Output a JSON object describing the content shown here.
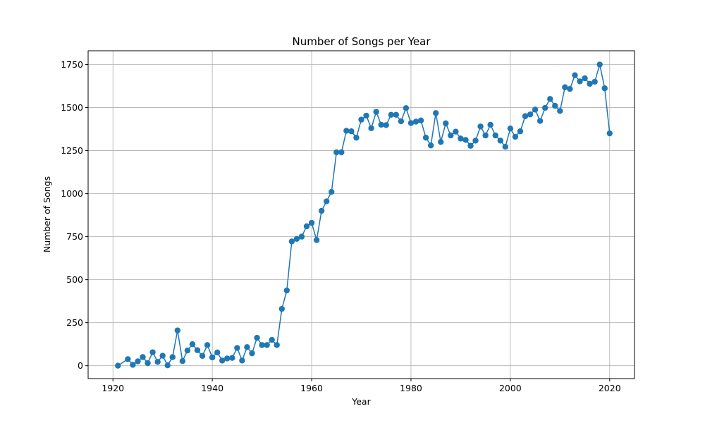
{
  "chart_data": {
    "type": "line",
    "title": "Number of Songs per Year",
    "xlabel": "Year",
    "ylabel": "Number of Songs",
    "xlim": [
      1915,
      2025
    ],
    "ylim": [
      -75,
      1830
    ],
    "xticks": [
      1920,
      1940,
      1960,
      1980,
      2000,
      2020
    ],
    "yticks": [
      0,
      250,
      500,
      750,
      1000,
      1250,
      1500,
      1750
    ],
    "grid": true,
    "marker": "circle",
    "colors": {
      "series": "#1f77b4",
      "grid": "#b0b0b0",
      "axis": "#000000"
    },
    "series": [
      {
        "x": [
          1921,
          1923,
          1924,
          1925,
          1926,
          1927,
          1928,
          1929,
          1930,
          1931,
          1932,
          1933,
          1934,
          1935,
          1936,
          1937,
          1938,
          1939,
          1940,
          1941,
          1942,
          1943,
          1944,
          1945,
          1946,
          1947,
          1948,
          1949,
          1950,
          1951,
          1952,
          1953,
          1954,
          1955,
          1956,
          1957,
          1958,
          1959,
          1960,
          1961,
          1962,
          1963,
          1964,
          1965,
          1966,
          1967,
          1968,
          1969,
          1970,
          1971,
          1972,
          1973,
          1974,
          1975,
          1976,
          1977,
          1978,
          1979,
          1980,
          1981,
          1982,
          1983,
          1984,
          1985,
          1986,
          1987,
          1988,
          1989,
          1990,
          1991,
          1992,
          1993,
          1994,
          1995,
          1996,
          1997,
          1998,
          1999,
          2000,
          2001,
          2002,
          2003,
          2004,
          2005,
          2006,
          2007,
          2008,
          2009,
          2010,
          2011,
          2012,
          2013,
          2014,
          2015,
          2016,
          2017,
          2018,
          2019,
          2020
        ],
        "values": [
          0,
          38,
          5,
          25,
          50,
          15,
          78,
          22,
          58,
          2,
          50,
          205,
          27,
          88,
          125,
          90,
          57,
          120,
          48,
          77,
          30,
          42,
          45,
          103,
          30,
          108,
          72,
          162,
          120,
          120,
          150,
          120,
          330,
          437,
          722,
          737,
          750,
          810,
          830,
          730,
          900,
          955,
          1010,
          1240,
          1240,
          1365,
          1362,
          1325,
          1430,
          1453,
          1380,
          1475,
          1400,
          1398,
          1458,
          1458,
          1420,
          1497,
          1410,
          1418,
          1425,
          1325,
          1280,
          1468,
          1300,
          1408,
          1338,
          1360,
          1320,
          1312,
          1278,
          1308,
          1390,
          1338,
          1400,
          1338,
          1308,
          1272,
          1378,
          1330,
          1362,
          1450,
          1460,
          1488,
          1422,
          1498,
          1550,
          1510,
          1480,
          1618,
          1608,
          1688,
          1652,
          1670,
          1638,
          1650,
          1750,
          1612,
          1350
        ]
      }
    ]
  }
}
